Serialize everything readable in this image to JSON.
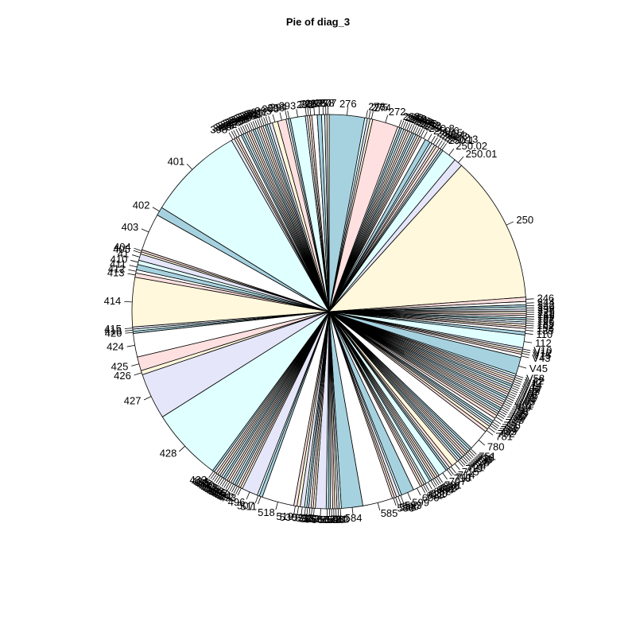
{
  "chart_data": {
    "type": "pie",
    "title": "Pie of diag_3",
    "palette": [
      "#a6d2e0",
      "#e0ffff",
      "#e6e6fa",
      "#fff8dc",
      "#ffe0e0",
      "#ffffff"
    ],
    "clockwise": true,
    "start_angle_deg": 90,
    "slices": [
      {
        "label": "276",
        "value": 3.3
      },
      {
        "label": "278",
        "value": 0.25
      },
      {
        "label": "275",
        "value": 0.25
      },
      {
        "label": "274",
        "value": 0.25
      },
      {
        "label": "272",
        "value": 2.4
      },
      {
        "label": "268",
        "value": 0.2
      },
      {
        "label": "266",
        "value": 0.2
      },
      {
        "label": "263",
        "value": 0.2
      },
      {
        "label": "262",
        "value": 0.2
      },
      {
        "label": "261",
        "value": 0.2
      },
      {
        "label": "260",
        "value": 0.2
      },
      {
        "label": "259",
        "value": 0.2
      },
      {
        "label": "258",
        "value": 0.2
      },
      {
        "label": "255",
        "value": 0.2
      },
      {
        "label": "253",
        "value": 0.2
      },
      {
        "label": "252",
        "value": 0.2
      },
      {
        "label": "251",
        "value": 0.2
      },
      {
        "label": "250.8",
        "value": 0.4
      },
      {
        "label": "250.6",
        "value": 0.5
      },
      {
        "label": "250.5",
        "value": 0.2
      },
      {
        "label": "250.4",
        "value": 0.3
      },
      {
        "label": "250.3",
        "value": 0.2
      },
      {
        "label": "250.2",
        "value": 0.3
      },
      {
        "label": "250.13",
        "value": 0.2
      },
      {
        "label": "250.1",
        "value": 0.2
      },
      {
        "label": "250.02",
        "value": 1.4
      },
      {
        "label": "250.01",
        "value": 0.8
      },
      {
        "label": "250",
        "value": 13.8
      },
      {
        "label": "246",
        "value": 0.4
      },
      {
        "label": "244",
        "value": 0.3
      },
      {
        "label": "242",
        "value": 0.2
      },
      {
        "label": "240",
        "value": 0.2
      },
      {
        "label": "238",
        "value": 0.2
      },
      {
        "label": "225",
        "value": 0.2
      },
      {
        "label": "211",
        "value": 0.2
      },
      {
        "label": "199",
        "value": 0.2
      },
      {
        "label": "197",
        "value": 0.2
      },
      {
        "label": "196",
        "value": 0.2
      },
      {
        "label": "185",
        "value": 0.2
      },
      {
        "label": "162",
        "value": 0.2
      },
      {
        "label": "153",
        "value": 0.2
      },
      {
        "label": "135",
        "value": 0.3
      },
      {
        "label": "110",
        "value": 0.3
      },
      {
        "label": "112",
        "value": 1.2
      },
      {
        "label": "V10",
        "value": 0.2
      },
      {
        "label": "V12",
        "value": 0.2
      },
      {
        "label": "V15",
        "value": 0.2
      },
      {
        "label": "V43",
        "value": 0.3
      },
      {
        "label": "V45",
        "value": 1.6
      },
      {
        "label": "V58",
        "value": 0.2
      },
      {
        "label": "V42",
        "value": 0.2
      },
      {
        "label": "V17",
        "value": 0.2
      },
      {
        "label": "V14",
        "value": 0.2
      },
      {
        "label": "V11",
        "value": 0.2
      },
      {
        "label": "V09",
        "value": 0.2
      },
      {
        "label": "V08",
        "value": 0.2
      },
      {
        "label": "V07",
        "value": 0.2
      },
      {
        "label": "V06",
        "value": 0.2
      },
      {
        "label": "V05",
        "value": 0.2
      },
      {
        "label": "V04",
        "value": 0.2
      },
      {
        "label": "V03",
        "value": 0.2
      },
      {
        "label": "V02",
        "value": 0.2
      },
      {
        "label": "V01",
        "value": 0.2
      },
      {
        "label": "799",
        "value": 0.2
      },
      {
        "label": "797",
        "value": 0.2
      },
      {
        "label": "796",
        "value": 0.2
      },
      {
        "label": "795",
        "value": 0.2
      },
      {
        "label": "790",
        "value": 0.2
      },
      {
        "label": "789",
        "value": 0.2
      },
      {
        "label": "788",
        "value": 0.2
      },
      {
        "label": "787",
        "value": 0.3
      },
      {
        "label": "786",
        "value": 0.3
      },
      {
        "label": "785",
        "value": 0.2
      },
      {
        "label": "784",
        "value": 0.2
      },
      {
        "label": "783",
        "value": 0.2
      },
      {
        "label": "782",
        "value": 0.3
      },
      {
        "label": "781",
        "value": 0.3
      },
      {
        "label": "780",
        "value": 2.0
      },
      {
        "label": "751",
        "value": 0.2
      },
      {
        "label": "738",
        "value": 0.2
      },
      {
        "label": "733",
        "value": 0.2
      },
      {
        "label": "729",
        "value": 0.2
      },
      {
        "label": "728",
        "value": 0.2
      },
      {
        "label": "727",
        "value": 0.2
      },
      {
        "label": "724",
        "value": 0.2
      },
      {
        "label": "721",
        "value": 0.2
      },
      {
        "label": "719",
        "value": 0.2
      },
      {
        "label": "715",
        "value": 0.6
      },
      {
        "label": "714",
        "value": 0.3
      },
      {
        "label": "711",
        "value": 0.2
      },
      {
        "label": "710",
        "value": 0.2
      },
      {
        "label": "707",
        "value": 0.8
      },
      {
        "label": "701",
        "value": 0.2
      },
      {
        "label": "698",
        "value": 0.2
      },
      {
        "label": "693",
        "value": 0.2
      },
      {
        "label": "692",
        "value": 0.2
      },
      {
        "label": "686",
        "value": 0.2
      },
      {
        "label": "682",
        "value": 0.4
      },
      {
        "label": "680",
        "value": 0.2
      },
      {
        "label": "621",
        "value": 0.2
      },
      {
        "label": "611",
        "value": 0.2
      },
      {
        "label": "600",
        "value": 0.7
      },
      {
        "label": "599",
        "value": 1.2
      },
      {
        "label": "593",
        "value": 0.2
      },
      {
        "label": "590",
        "value": 0.3
      },
      {
        "label": "588",
        "value": 0.2
      },
      {
        "label": "586",
        "value": 0.2
      },
      {
        "label": "585",
        "value": 2.8
      },
      {
        "label": "584",
        "value": 2.0
      },
      {
        "label": "583",
        "value": 0.2
      },
      {
        "label": "581",
        "value": 0.2
      },
      {
        "label": "578",
        "value": 0.2
      },
      {
        "label": "574",
        "value": 0.2
      },
      {
        "label": "571",
        "value": 0.2
      },
      {
        "label": "569",
        "value": 0.2
      },
      {
        "label": "567",
        "value": 0.2
      },
      {
        "label": "560",
        "value": 1.0
      },
      {
        "label": "558",
        "value": 0.2
      },
      {
        "label": "553",
        "value": 0.2
      },
      {
        "label": "537",
        "value": 0.2
      },
      {
        "label": "535",
        "value": 0.2
      },
      {
        "label": "533",
        "value": 0.2
      },
      {
        "label": "531",
        "value": 0.4
      },
      {
        "label": "530",
        "value": 0.3
      },
      {
        "label": "519",
        "value": 0.3
      },
      {
        "label": "518",
        "value": 3.0
      },
      {
        "label": "511",
        "value": 0.3
      },
      {
        "label": "507",
        "value": 0.2
      },
      {
        "label": "496",
        "value": 1.5
      },
      {
        "label": "493",
        "value": 0.2
      },
      {
        "label": "492",
        "value": 0.2
      },
      {
        "label": "491",
        "value": 0.2
      },
      {
        "label": "490",
        "value": 0.2
      },
      {
        "label": "487",
        "value": 0.2
      },
      {
        "label": "486",
        "value": 0.2
      },
      {
        "label": "482",
        "value": 0.2
      },
      {
        "label": "466",
        "value": 0.2
      },
      {
        "label": "465",
        "value": 0.2
      },
      {
        "label": "458",
        "value": 0.2
      },
      {
        "label": "443",
        "value": 0.2
      },
      {
        "label": "440",
        "value": 0.2
      },
      {
        "label": "438",
        "value": 0.2
      },
      {
        "label": "435",
        "value": 0.2
      },
      {
        "label": "434",
        "value": 0.2
      },
      {
        "label": "433",
        "value": 0.2
      },
      {
        "label": "428",
        "value": 6.8
      },
      {
        "label": "427",
        "value": 4.3
      },
      {
        "label": "426",
        "value": 0.4
      },
      {
        "label": "425",
        "value": 1.3
      },
      {
        "label": "424",
        "value": 2.2
      },
      {
        "label": "420",
        "value": 0.2
      },
      {
        "label": "416",
        "value": 0.2
      },
      {
        "label": "415",
        "value": 0.2
      },
      {
        "label": "414",
        "value": 4.6
      },
      {
        "label": "413",
        "value": 0.4
      },
      {
        "label": "412",
        "value": 0.3
      },
      {
        "label": "411",
        "value": 0.5
      },
      {
        "label": "410",
        "value": 0.4
      },
      {
        "label": "41",
        "value": 0.6
      },
      {
        "label": "405",
        "value": 0.2
      },
      {
        "label": "404",
        "value": 0.2
      },
      {
        "label": "403",
        "value": 3.5
      },
      {
        "label": "402",
        "value": 0.8
      },
      {
        "label": "401",
        "value": 9.0
      },
      {
        "label": "398",
        "value": 0.3
      },
      {
        "label": "397",
        "value": 0.2
      },
      {
        "label": "369",
        "value": 0.2
      },
      {
        "label": "365",
        "value": 0.3
      },
      {
        "label": "362",
        "value": 0.2
      },
      {
        "label": "357",
        "value": 0.2
      },
      {
        "label": "356",
        "value": 0.2
      },
      {
        "label": "355",
        "value": 0.2
      },
      {
        "label": "349",
        "value": 0.2
      },
      {
        "label": "348",
        "value": 0.2
      },
      {
        "label": "345",
        "value": 0.2
      },
      {
        "label": "340",
        "value": 0.2
      },
      {
        "label": "337",
        "value": 0.2
      },
      {
        "label": "335",
        "value": 0.2
      },
      {
        "label": "333",
        "value": 0.2
      },
      {
        "label": "332",
        "value": 0.2
      },
      {
        "label": "331",
        "value": 0.2
      },
      {
        "label": "327",
        "value": 0.2
      },
      {
        "label": "311",
        "value": 0.3
      },
      {
        "label": "305",
        "value": 0.5
      },
      {
        "label": "300",
        "value": 0.8
      },
      {
        "label": "296",
        "value": 0.2
      },
      {
        "label": "294",
        "value": 0.2
      },
      {
        "label": "293",
        "value": 1.4
      },
      {
        "label": "292",
        "value": 0.2
      },
      {
        "label": "290",
        "value": 0.2
      },
      {
        "label": "288",
        "value": 0.2
      },
      {
        "label": "287",
        "value": 0.5
      },
      {
        "label": "285",
        "value": 0.4
      },
      {
        "label": "280",
        "value": 0.3
      },
      {
        "label": "278",
        "value": 0.2
      },
      {
        "label": "277",
        "value": 0.2
      }
    ]
  }
}
